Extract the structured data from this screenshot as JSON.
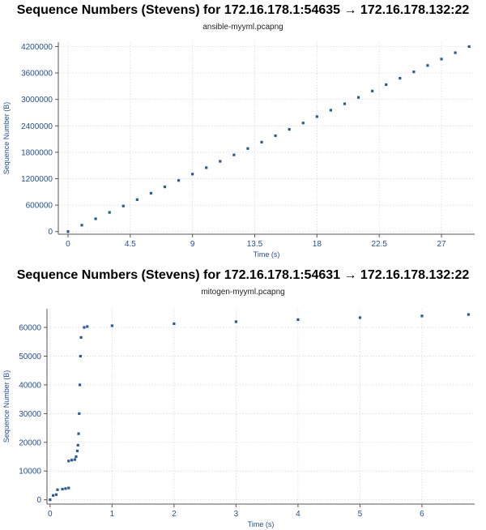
{
  "colors": {
    "series": "#2a5a9a",
    "axis": "#1f4e99",
    "grid": "#d4d4d4"
  },
  "chart_data": [
    {
      "type": "scatter",
      "title": "Sequence Numbers (Stevens) for 172.16.178.1:54635 → 172.16.178.132:22",
      "subtitle": "ansible-myyml.pcapng",
      "xlabel": "Time (s)",
      "ylabel": "Sequence Number (B)",
      "xlim": [
        -0.7,
        29.4
      ],
      "ylim": [
        -60000,
        4300000
      ],
      "xticks": [
        0,
        4.5,
        9,
        13.5,
        18,
        22.5,
        27
      ],
      "xtick_labels": [
        "0",
        "4.5",
        "9",
        "13.5",
        "18",
        "22.5",
        "27"
      ],
      "yticks": [
        0,
        600000,
        1200000,
        1800000,
        2400000,
        3000000,
        3600000,
        4200000
      ],
      "ytick_labels": [
        "0",
        "600000",
        "1200000",
        "1800000",
        "2400000",
        "3000000",
        "3600000",
        "4200000"
      ],
      "grid": true,
      "series": [
        {
          "x": [
            0,
            1,
            2,
            3,
            4,
            5,
            6,
            7,
            8,
            9,
            10,
            11,
            12,
            13,
            14,
            15,
            16,
            17,
            18,
            19,
            20,
            21,
            22,
            23,
            24,
            25,
            26,
            27,
            28,
            29
          ],
          "y": [
            0,
            145000,
            290000,
            435000,
            580000,
            725000,
            870000,
            1015000,
            1160000,
            1305000,
            1450000,
            1595000,
            1740000,
            1885000,
            2030000,
            2175000,
            2320000,
            2465000,
            2610000,
            2755000,
            2900000,
            3045000,
            3190000,
            3335000,
            3480000,
            3625000,
            3770000,
            3915000,
            4060000,
            4200000
          ]
        }
      ]
    },
    {
      "type": "scatter",
      "title": "Sequence Numbers (Stevens) for 172.16.178.1:54631 → 172.16.178.132:22",
      "subtitle": "mitogen-myyml.pcapng",
      "xlabel": "Time (s)",
      "ylabel": "Sequence Number (B)",
      "xlim": [
        -0.05,
        6.85
      ],
      "ylim": [
        -1500,
        66500
      ],
      "xticks": [
        0,
        1,
        2,
        3,
        4,
        5,
        6
      ],
      "xtick_labels": [
        "0",
        "1",
        "2",
        "3",
        "4",
        "5",
        "6"
      ],
      "yticks": [
        0,
        10000,
        20000,
        30000,
        40000,
        50000,
        60000
      ],
      "ytick_labels": [
        "0",
        "10000",
        "20000",
        "30000",
        "40000",
        "50000",
        "60000"
      ],
      "grid": true,
      "series": [
        {
          "x": [
            0,
            0.05,
            0.1,
            0.12,
            0.2,
            0.25,
            0.3,
            0.3,
            0.35,
            0.4,
            0.42,
            0.44,
            0.45,
            0.46,
            0.47,
            0.48,
            0.49,
            0.5,
            0.55,
            0.6,
            1,
            2,
            3,
            4,
            5,
            6,
            6.75
          ],
          "y": [
            0,
            1500,
            1800,
            3500,
            3700,
            3900,
            4100,
            13500,
            13800,
            14000,
            15000,
            17000,
            19000,
            23000,
            30000,
            40000,
            50000,
            56500,
            60000,
            60300,
            60600,
            61300,
            62000,
            62700,
            63400,
            64000,
            64500
          ]
        }
      ]
    }
  ]
}
